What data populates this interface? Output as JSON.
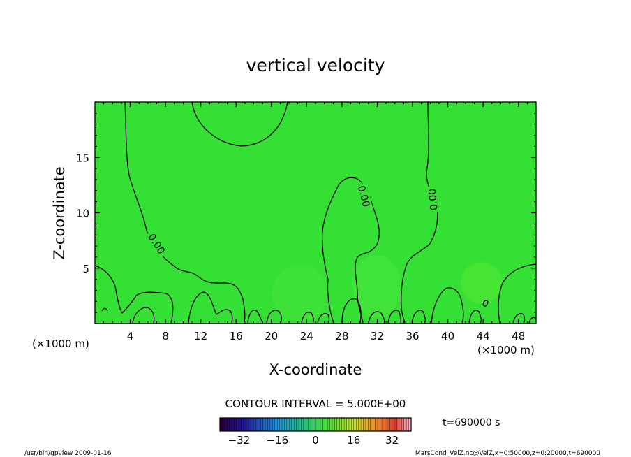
{
  "chart_data": {
    "type": "heatmap",
    "title": "vertical velocity",
    "xlabel": "X-coordinate",
    "ylabel": "Z-coordinate",
    "x_unit_label": "(×1000 m)",
    "x_unit_label_right": "(×1000 m)",
    "x_ticks": [
      4,
      8,
      12,
      16,
      20,
      24,
      28,
      32,
      36,
      40,
      44,
      48
    ],
    "y_ticks": [
      5,
      10,
      15
    ],
    "xlim": [
      0,
      50
    ],
    "ylim": [
      0,
      20
    ],
    "field_color": "#33e033",
    "contour_labels": [
      {
        "text": "0.00",
        "x": 7.0,
        "z": 7.2
      },
      {
        "text": "0.00",
        "x": 30.5,
        "z": 11.5
      },
      {
        "text": "0.00",
        "x": 38.3,
        "z": 11.2
      }
    ],
    "contour_interval": "CONTOUR INTERVAL = 5.000E+00",
    "time": "t=690000 s",
    "colorbar": {
      "min": -40,
      "max": 40,
      "ticks": [
        "−32",
        "−16",
        "0",
        "16",
        "32"
      ],
      "tick_values": [
        -32,
        -16,
        0,
        16,
        32
      ]
    }
  },
  "footer": {
    "left": "/usr/bin/gpview   2009-01-16",
    "right": "MarsCond_VelZ.nc@VelZ,x=0:50000,z=0:20000,t=690000"
  }
}
